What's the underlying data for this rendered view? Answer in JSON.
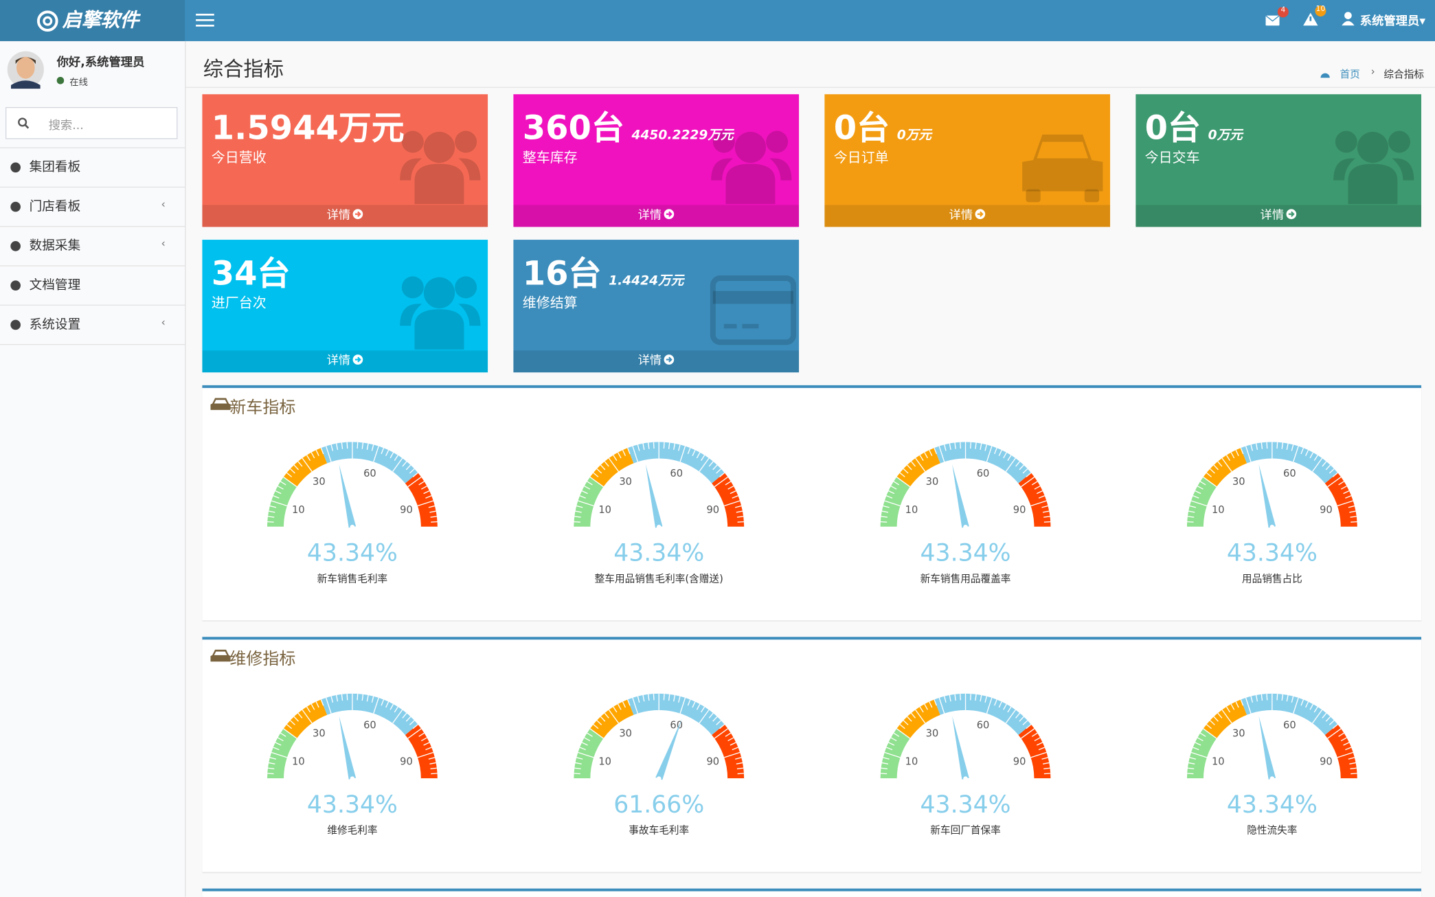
{
  "header": {
    "logo": "启擎软件",
    "messages": "4",
    "alerts": "10",
    "user": "系统管理员"
  },
  "sidebar": {
    "greeting": "你好,系统管理员",
    "status": "在线",
    "search_placeholder": "搜索...",
    "menu": [
      "集团看板",
      "门店看板",
      "数据采集",
      "文档管理",
      "系统设置"
    ]
  },
  "page": {
    "title": "综合指标",
    "breadcrumb": [
      "首页",
      "综合指标"
    ]
  },
  "info_boxes": [
    {
      "value": "1.5944万元",
      "label": "今日营收",
      "more": "详情",
      "color": "#f56954"
    },
    {
      "value": "360台",
      "extra": "4450.2229万元",
      "label": "整车库存",
      "more": "详情",
      "color": "#f012be"
    },
    {
      "value": "0台",
      "extra": "0万元",
      "label": "今日订单",
      "more": "详情",
      "color": "#f39c12"
    },
    {
      "value": "0台",
      "extra": "0万元",
      "label": "今日交车",
      "more": "详情",
      "color": "#3d9970"
    },
    {
      "value": "34台",
      "label": "进厂台次",
      "more": "详情",
      "color": "#00c0ef"
    },
    {
      "value": "16台",
      "extra": "1.4424万元",
      "label": "维修结算",
      "more": "详情",
      "color": "#3c8dbc"
    }
  ],
  "gauge_scale": {
    "range": [
      0,
      100
    ],
    "ticks": [
      10,
      30,
      60,
      90
    ],
    "bands": [
      {
        "to": 20,
        "color": "#8fe08f"
      },
      {
        "to": 38,
        "color": "#ffa500"
      },
      {
        "to": 78,
        "color": "#87ceeb"
      },
      {
        "to": 100,
        "color": "#ff4500"
      }
    ]
  },
  "sections": [
    {
      "title": "新车指标",
      "gauges": [
        {
          "name": "新车销售毛利率",
          "value": 43.34,
          "label": "43.34%"
        },
        {
          "name": "整车用品销售毛利率(含赠送)",
          "value": 43.34,
          "label": "43.34%"
        },
        {
          "name": "新车销售用品覆盖率",
          "value": 43.34,
          "label": "43.34%"
        },
        {
          "name": "用品销售占比",
          "value": 43.34,
          "label": "43.34%"
        }
      ]
    },
    {
      "title": "维修指标",
      "gauges": [
        {
          "name": "维修毛利率",
          "value": 43.34,
          "label": "43.34%"
        },
        {
          "name": "事故车毛利率",
          "value": 61.66,
          "label": "61.66%"
        },
        {
          "name": "新车回厂首保率",
          "value": 43.34,
          "label": "43.34%"
        },
        {
          "name": "隐性流失率",
          "value": 43.34,
          "label": "43.34%"
        }
      ]
    }
  ]
}
